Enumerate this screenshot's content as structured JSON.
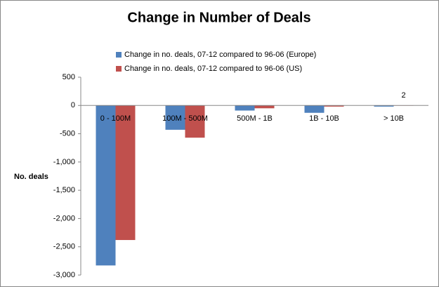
{
  "chart_data": {
    "type": "bar",
    "title": "Change in Number of Deals",
    "y_label": "No. deals",
    "categories": [
      "0 - 100M",
      "100M - 500M",
      "500M - 1B",
      "1B - 10B",
      "> 10B"
    ],
    "series": [
      {
        "name": "Change in no. deals, 07-12 compared to 96-06 (Europe)",
        "color": "#4f81bd",
        "values": [
          -2830,
          -430,
          -90,
          -130,
          -20
        ]
      },
      {
        "name": "Change in no. deals, 07-12 compared to 96-06 (US)",
        "color": "#c0504d",
        "values": [
          -2380,
          -570,
          -50,
          -20,
          2
        ],
        "value_labels": [
          null,
          null,
          null,
          null,
          "2"
        ]
      }
    ],
    "ylim": [
      -3000,
      500
    ],
    "yticks": [
      500,
      0,
      -500,
      {
        "value": -1000,
        "label": "-1,000"
      },
      {
        "value": -1500,
        "label": "-1,500"
      },
      {
        "value": -2000,
        "label": "-2,000"
      },
      {
        "value": -2500,
        "label": "-2,500"
      },
      {
        "value": -3000,
        "label": "-3,000"
      }
    ],
    "grid": false,
    "legend": "top"
  }
}
